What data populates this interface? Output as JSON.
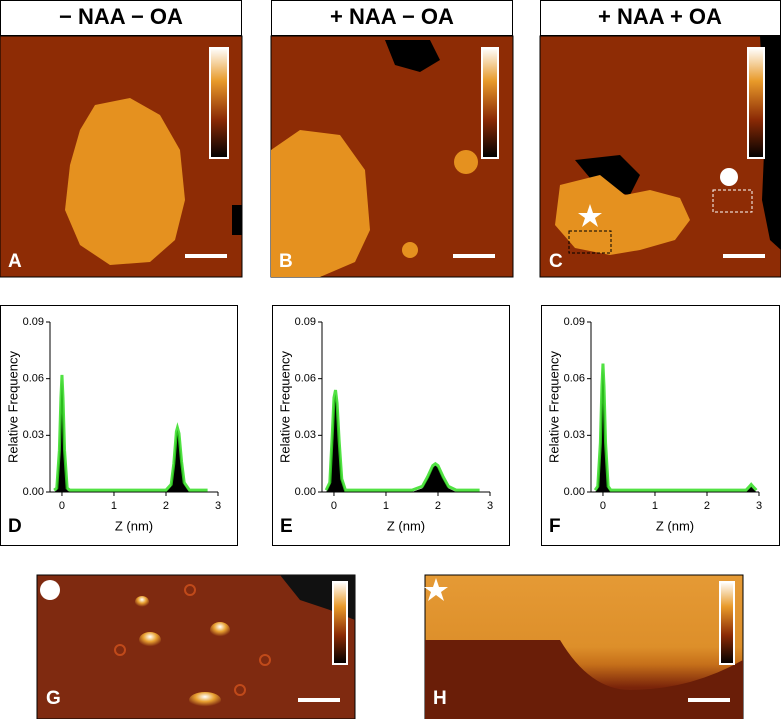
{
  "image_panels": [
    {
      "title": "− NAA  − OA",
      "label": "A"
    },
    {
      "title": "+ NAA  − OA",
      "label": "B"
    },
    {
      "title": "+ NAA  + OA",
      "label": "C"
    },
    {
      "label": "G"
    },
    {
      "label": "H"
    }
  ],
  "chart_data": [
    {
      "type": "area",
      "label": "D",
      "xlabel": "Z (nm)",
      "ylabel": "Relative Frequency",
      "xlim": [
        -0.23,
        3
      ],
      "ylim": [
        0,
        0.09
      ],
      "xticks": [
        0,
        1,
        2,
        3
      ],
      "yticks": [
        {
          "value": 0,
          "label": "0.00"
        },
        {
          "value": 0.03,
          "label": "0.03"
        },
        {
          "value": 0.06,
          "label": "0.06"
        },
        {
          "value": 0.09,
          "label": "0.09"
        }
      ],
      "x": [
        -0.15,
        -0.1,
        -0.05,
        -0.02,
        0,
        0.02,
        0.05,
        0.1,
        0.15,
        0.5,
        1,
        1.5,
        2,
        2.1,
        2.15,
        2.2,
        2.22,
        2.25,
        2.3,
        2.35,
        2.45,
        2.8
      ],
      "series": [
        {
          "color": "#000000",
          "fill": true,
          "values": [
            0,
            0.001,
            0.02,
            0.048,
            0.06,
            0.048,
            0.02,
            0.001,
            0,
            0,
            0,
            0,
            0,
            0.003,
            0.014,
            0.031,
            0.033,
            0.03,
            0.015,
            0.004,
            0,
            0
          ]
        },
        {
          "color": "#33dd22",
          "fill": false,
          "values": [
            0.001,
            0.002,
            0.022,
            0.05,
            0.062,
            0.05,
            0.022,
            0.002,
            0.001,
            0.001,
            0.001,
            0.001,
            0.001,
            0.004,
            0.015,
            0.032,
            0.034,
            0.031,
            0.016,
            0.005,
            0.001,
            0.001
          ]
        }
      ]
    },
    {
      "type": "area",
      "label": "E",
      "xlabel": "Z (nm)",
      "ylabel": "Relative Frequency",
      "xlim": [
        -0.23,
        3
      ],
      "ylim": [
        0,
        0.09
      ],
      "xticks": [
        0,
        1,
        2,
        3
      ],
      "yticks": [
        {
          "value": 0,
          "label": "0.00"
        },
        {
          "value": 0.03,
          "label": "0.03"
        },
        {
          "value": 0.06,
          "label": "0.06"
        },
        {
          "value": 0.09,
          "label": "0.09"
        }
      ],
      "x": [
        -0.15,
        -0.08,
        -0.03,
        0,
        0.03,
        0.06,
        0.1,
        0.15,
        0.22,
        0.5,
        1,
        1.5,
        1.7,
        1.8,
        1.9,
        1.95,
        2,
        2.1,
        2.2,
        2.35,
        2.8
      ],
      "series": [
        {
          "color": "#000000",
          "fill": true,
          "values": [
            0,
            0.004,
            0.03,
            0.048,
            0.052,
            0.045,
            0.025,
            0.006,
            0,
            0,
            0,
            0,
            0.002,
            0.007,
            0.013,
            0.014,
            0.013,
            0.007,
            0.002,
            0,
            0
          ]
        },
        {
          "color": "#33dd22",
          "fill": false,
          "values": [
            0.001,
            0.005,
            0.032,
            0.05,
            0.054,
            0.047,
            0.027,
            0.007,
            0.001,
            0.001,
            0.001,
            0.001,
            0.003,
            0.008,
            0.014,
            0.015,
            0.014,
            0.008,
            0.003,
            0.001,
            0.001
          ]
        }
      ]
    },
    {
      "type": "area",
      "label": "F",
      "xlabel": "Z (nm)",
      "ylabel": "Relative Frequency",
      "xlim": [
        -0.23,
        3
      ],
      "ylim": [
        0,
        0.09
      ],
      "xticks": [
        0,
        1,
        2,
        3
      ],
      "yticks": [
        {
          "value": 0,
          "label": "0.00"
        },
        {
          "value": 0.03,
          "label": "0.03"
        },
        {
          "value": 0.06,
          "label": "0.06"
        },
        {
          "value": 0.09,
          "label": "0.09"
        }
      ],
      "x": [
        -0.15,
        -0.1,
        -0.05,
        -0.02,
        0,
        0.02,
        0.05,
        0.1,
        0.15,
        0.5,
        1,
        1.5,
        2,
        2.5,
        2.75,
        2.82,
        2.85,
        2.88,
        2.95
      ],
      "series": [
        {
          "color": "#000000",
          "fill": true,
          "values": [
            0,
            0.002,
            0.024,
            0.054,
            0.066,
            0.054,
            0.024,
            0.002,
            0,
            0,
            0,
            0,
            0,
            0,
            0,
            0.002,
            0.003,
            0.002,
            0
          ]
        },
        {
          "color": "#33dd22",
          "fill": false,
          "values": [
            0.001,
            0.003,
            0.026,
            0.056,
            0.068,
            0.056,
            0.026,
            0.003,
            0.001,
            0.001,
            0.001,
            0.001,
            0.001,
            0.001,
            0.001,
            0.003,
            0.004,
            0.003,
            0.001
          ]
        }
      ]
    }
  ]
}
